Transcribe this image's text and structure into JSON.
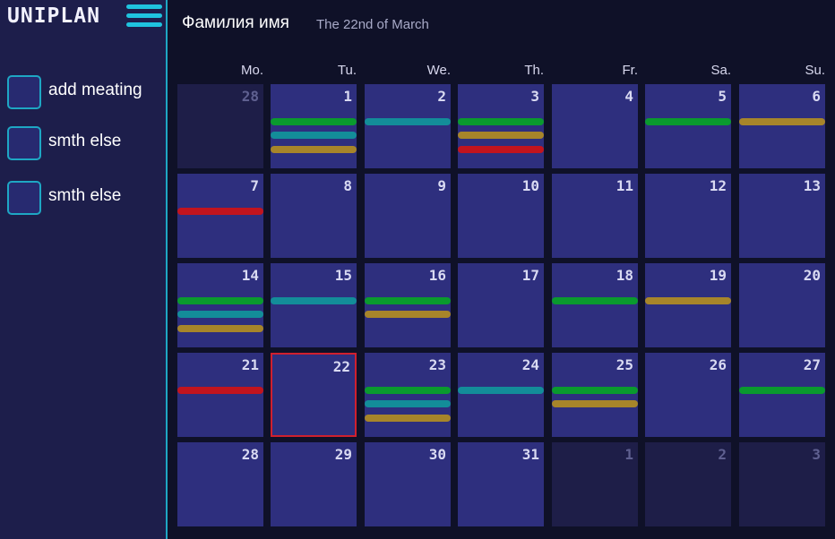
{
  "app": {
    "logo": "UNIPLAN"
  },
  "sidebar": {
    "items": [
      {
        "label": "add meating"
      },
      {
        "label": "smth else"
      },
      {
        "label": "smth else"
      }
    ]
  },
  "header": {
    "user_name": "Фамилия имя",
    "date_label": "The 22nd of March"
  },
  "calendar": {
    "weekdays": [
      "Mo.",
      "Tu.",
      "We.",
      "Th.",
      "Fr.",
      "Sa.",
      "Su."
    ],
    "event_colors": {
      "green": "#0a9a2e",
      "teal": "#138d99",
      "gold": "#a7852a",
      "red": "#c2141e"
    },
    "days": [
      {
        "label": "28",
        "outside": true,
        "events": []
      },
      {
        "label": "1",
        "events": [
          "green",
          "teal",
          "gold"
        ]
      },
      {
        "label": "2",
        "events": [
          "teal"
        ]
      },
      {
        "label": "3",
        "events": [
          "green",
          "gold",
          "red"
        ]
      },
      {
        "label": "4",
        "events": []
      },
      {
        "label": "5",
        "events": [
          "green"
        ]
      },
      {
        "label": "6",
        "events": [
          "gold"
        ]
      },
      {
        "label": "7",
        "events": [
          "red"
        ]
      },
      {
        "label": "8",
        "events": []
      },
      {
        "label": "9",
        "events": []
      },
      {
        "label": "10",
        "events": []
      },
      {
        "label": "11",
        "events": []
      },
      {
        "label": "12",
        "events": []
      },
      {
        "label": "13",
        "events": []
      },
      {
        "label": "14",
        "events": [
          "green",
          "teal",
          "gold"
        ]
      },
      {
        "label": "15",
        "events": [
          "teal"
        ]
      },
      {
        "label": "16",
        "events": [
          "green",
          "gold"
        ]
      },
      {
        "label": "17",
        "events": []
      },
      {
        "label": "18",
        "events": [
          "green"
        ]
      },
      {
        "label": "19",
        "events": [
          "gold"
        ]
      },
      {
        "label": "20",
        "events": []
      },
      {
        "label": "21",
        "events": [
          "red"
        ]
      },
      {
        "label": "22",
        "today": true,
        "events": []
      },
      {
        "label": "23",
        "events": [
          "green",
          "teal",
          "gold"
        ]
      },
      {
        "label": "24",
        "events": [
          "teal"
        ]
      },
      {
        "label": "25",
        "events": [
          "green",
          "gold"
        ]
      },
      {
        "label": "26",
        "events": []
      },
      {
        "label": "27",
        "events": [
          "green"
        ]
      },
      {
        "label": "28",
        "events": []
      },
      {
        "label": "29",
        "events": []
      },
      {
        "label": "30",
        "events": []
      },
      {
        "label": "31",
        "events": []
      },
      {
        "label": "1",
        "outside": true,
        "events": []
      },
      {
        "label": "2",
        "outside": true,
        "events": []
      },
      {
        "label": "3",
        "outside": true,
        "events": []
      }
    ]
  }
}
